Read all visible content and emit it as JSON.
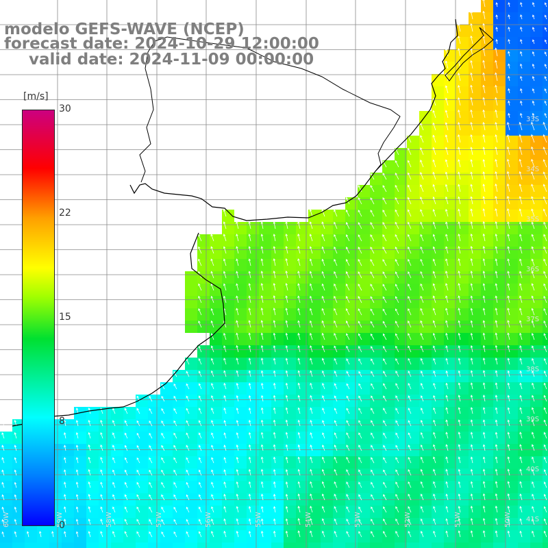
{
  "header": {
    "line1": "modelo GEFS-WAVE (NCEP)",
    "line2": "forecast date: 2024-10-29 12:00:00",
    "line3": "valid date: 2024-11-09 00:00:00"
  },
  "colorbar": {
    "unit": "[m/s]",
    "ticks": [
      "30",
      "22",
      "15",
      "8",
      "0"
    ],
    "colors": [
      "#0000ff",
      "#0080ff",
      "#00ffff",
      "#00e030",
      "#a0ff00",
      "#ffff00",
      "#ffa000",
      "#ff0000",
      "#cc0080"
    ]
  },
  "map": {
    "lat_labels": [
      "33S",
      "34S",
      "35S",
      "36S",
      "37S",
      "38S",
      "39S",
      "40S",
      "41S"
    ],
    "lon_labels": [
      "60W",
      "59W",
      "58W",
      "57W",
      "56W",
      "55W",
      "54W",
      "53W",
      "52W",
      "51W",
      "50W"
    ],
    "arrow_color": "#ffffff",
    "coastline_color": "#000000",
    "grid_color": "#888888"
  }
}
